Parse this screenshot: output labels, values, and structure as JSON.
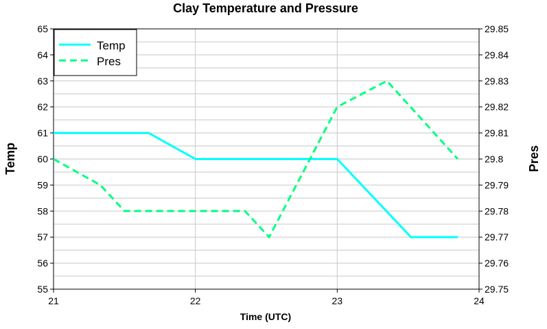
{
  "chart_data": {
    "type": "line",
    "title": "Clay Temperature and Pressure",
    "xlabel": "Time (UTC)",
    "ylabel_left": "Temp",
    "ylabel_right": "Pres",
    "xlim": [
      21,
      24
    ],
    "xticks": [
      "21",
      "22",
      "23",
      "24"
    ],
    "ylim_left": [
      55,
      65
    ],
    "yticks_left": [
      "55",
      "56",
      "57",
      "58",
      "59",
      "60",
      "61",
      "62",
      "63",
      "64",
      "65"
    ],
    "ylim_right": [
      29.75,
      29.85
    ],
    "yticks_right": [
      "29.75",
      "29.76",
      "29.77",
      "29.78",
      "29.79",
      "29.8",
      "29.81",
      "29.82",
      "29.83",
      "29.84",
      "29.85"
    ],
    "grid": true,
    "legend_position": "top-left",
    "series": [
      {
        "name": "Temp",
        "axis": "left",
        "style": "solid",
        "color": "#00ffff",
        "x": [
          21.0,
          21.67,
          22.0,
          23.0,
          23.52,
          23.85
        ],
        "y": [
          61,
          61,
          60,
          60,
          57,
          57
        ]
      },
      {
        "name": "Pres",
        "axis": "right",
        "style": "dashed",
        "color": "#00ff80",
        "x": [
          21.0,
          21.33,
          21.5,
          22.0,
          22.35,
          22.52,
          23.0,
          23.35,
          23.85
        ],
        "y": [
          29.8,
          29.79,
          29.78,
          29.78,
          29.78,
          29.77,
          29.82,
          29.83,
          29.8
        ]
      }
    ]
  }
}
